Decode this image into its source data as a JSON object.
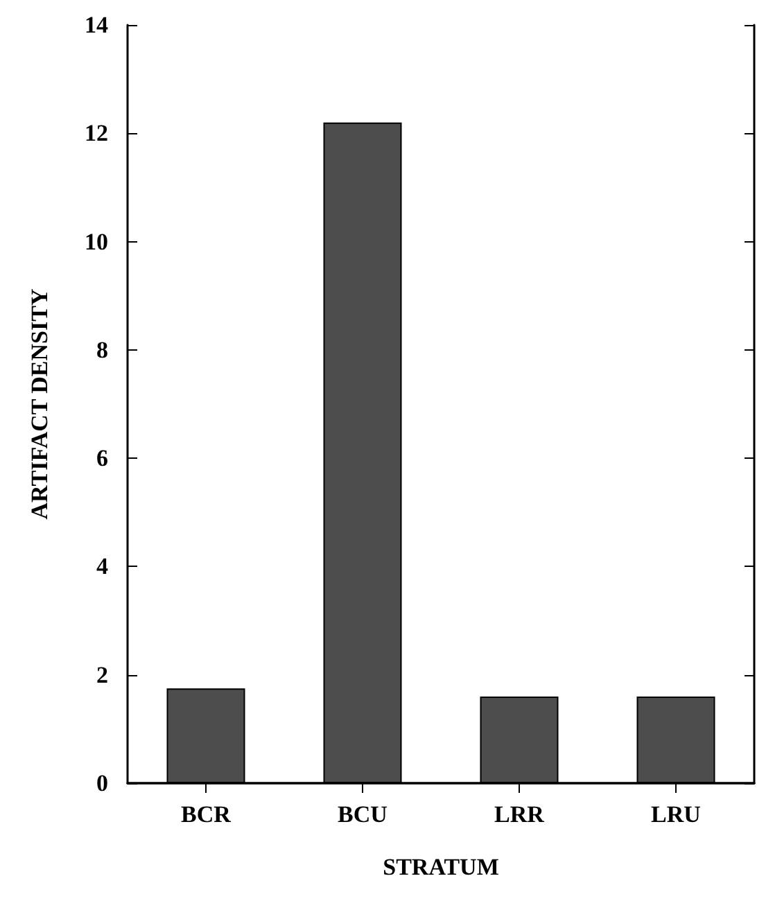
{
  "chart_data": {
    "type": "bar",
    "xlabel": "STRATUM",
    "ylabel": "ARTIFACT DENSITY",
    "categories": [
      "BCR",
      "BCU",
      "LRR",
      "LRU"
    ],
    "values": [
      1.75,
      12.2,
      1.6,
      1.6
    ],
    "color": "#4d4d4d",
    "ylim": [
      0,
      14
    ],
    "yticks": [
      0,
      2,
      4,
      6,
      8,
      10,
      12,
      14
    ],
    "grid": false
  }
}
